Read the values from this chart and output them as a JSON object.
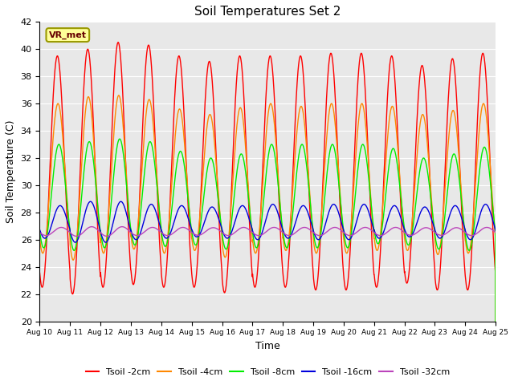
{
  "title": "Soil Temperatures Set 2",
  "xlabel": "Time",
  "ylabel": "Soil Temperature (C)",
  "ylim": [
    20,
    42
  ],
  "xlim": [
    0,
    15
  ],
  "background_color": "#e8e8e8",
  "grid_color": "white",
  "annotation_text": "VR_met",
  "annotation_box_facecolor": "#ffff99",
  "annotation_box_edgecolor": "#999900",
  "annotation_text_color": "#660000",
  "series_colors": {
    "Tsoil -2cm": "#ff0000",
    "Tsoil -4cm": "#ff8800",
    "Tsoil -8cm": "#00ee00",
    "Tsoil -16cm": "#0000dd",
    "Tsoil -32cm": "#bb44bb"
  },
  "tick_labels": [
    "Aug 10",
    "Aug 11",
    "Aug 12",
    "Aug 13",
    "Aug 14",
    "Aug 15",
    "Aug 16",
    "Aug 17",
    "Aug 18",
    "Aug 19",
    "Aug 20",
    "Aug 21",
    "Aug 22",
    "Aug 23",
    "Aug 24",
    "Aug 25"
  ]
}
